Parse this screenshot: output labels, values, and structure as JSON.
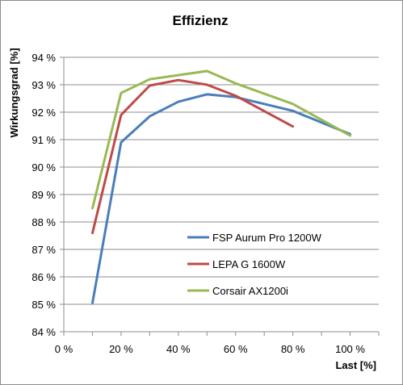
{
  "chart_data": {
    "type": "line",
    "title": "Effizienz",
    "xlabel": "Last [%]",
    "ylabel": "Wirkungsgrad [%]",
    "xlim": [
      0,
      110
    ],
    "ylim": [
      84,
      94
    ],
    "x_ticks": [
      {
        "value": 0,
        "label": "0 %"
      },
      {
        "value": 20,
        "label": "20 %"
      },
      {
        "value": 40,
        "label": "40 %"
      },
      {
        "value": 60,
        "label": "60 %"
      },
      {
        "value": 80,
        "label": "80 %"
      },
      {
        "value": 100,
        "label": "100 %"
      }
    ],
    "y_ticks": [
      {
        "value": 84,
        "label": "84 %"
      },
      {
        "value": 85,
        "label": "85 %"
      },
      {
        "value": 86,
        "label": "86 %"
      },
      {
        "value": 87,
        "label": "87 %"
      },
      {
        "value": 88,
        "label": "88 %"
      },
      {
        "value": 89,
        "label": "89 %"
      },
      {
        "value": 90,
        "label": "90 %"
      },
      {
        "value": 91,
        "label": "91 %"
      },
      {
        "value": 92,
        "label": "92 %"
      },
      {
        "value": 93,
        "label": "93 %"
      },
      {
        "value": 94,
        "label": "94 %"
      }
    ],
    "grid": "horizontal",
    "legend_position": "inside-bottom-right",
    "series": [
      {
        "name": "FSP Aurum Pro 1200W",
        "color": "#4a7ebb",
        "points": [
          [
            10,
            85.05
          ],
          [
            20,
            90.9
          ],
          [
            30,
            91.85
          ],
          [
            40,
            92.38
          ],
          [
            50,
            92.65
          ],
          [
            60,
            92.55
          ],
          [
            80,
            92.05
          ],
          [
            100,
            91.2
          ]
        ]
      },
      {
        "name": "LEPA G 1600W",
        "color": "#be4b48",
        "points": [
          [
            10,
            87.6
          ],
          [
            20,
            91.9
          ],
          [
            30,
            92.97
          ],
          [
            40,
            93.17
          ],
          [
            50,
            93.0
          ],
          [
            60,
            92.6
          ],
          [
            80,
            91.48
          ]
        ]
      },
      {
        "name": "Corsair AX1200i",
        "color": "#98b954",
        "points": [
          [
            10,
            88.5
          ],
          [
            20,
            92.7
          ],
          [
            30,
            93.2
          ],
          [
            40,
            93.35
          ],
          [
            50,
            93.5
          ],
          [
            60,
            93.05
          ],
          [
            80,
            92.3
          ],
          [
            100,
            91.15
          ]
        ]
      }
    ]
  }
}
